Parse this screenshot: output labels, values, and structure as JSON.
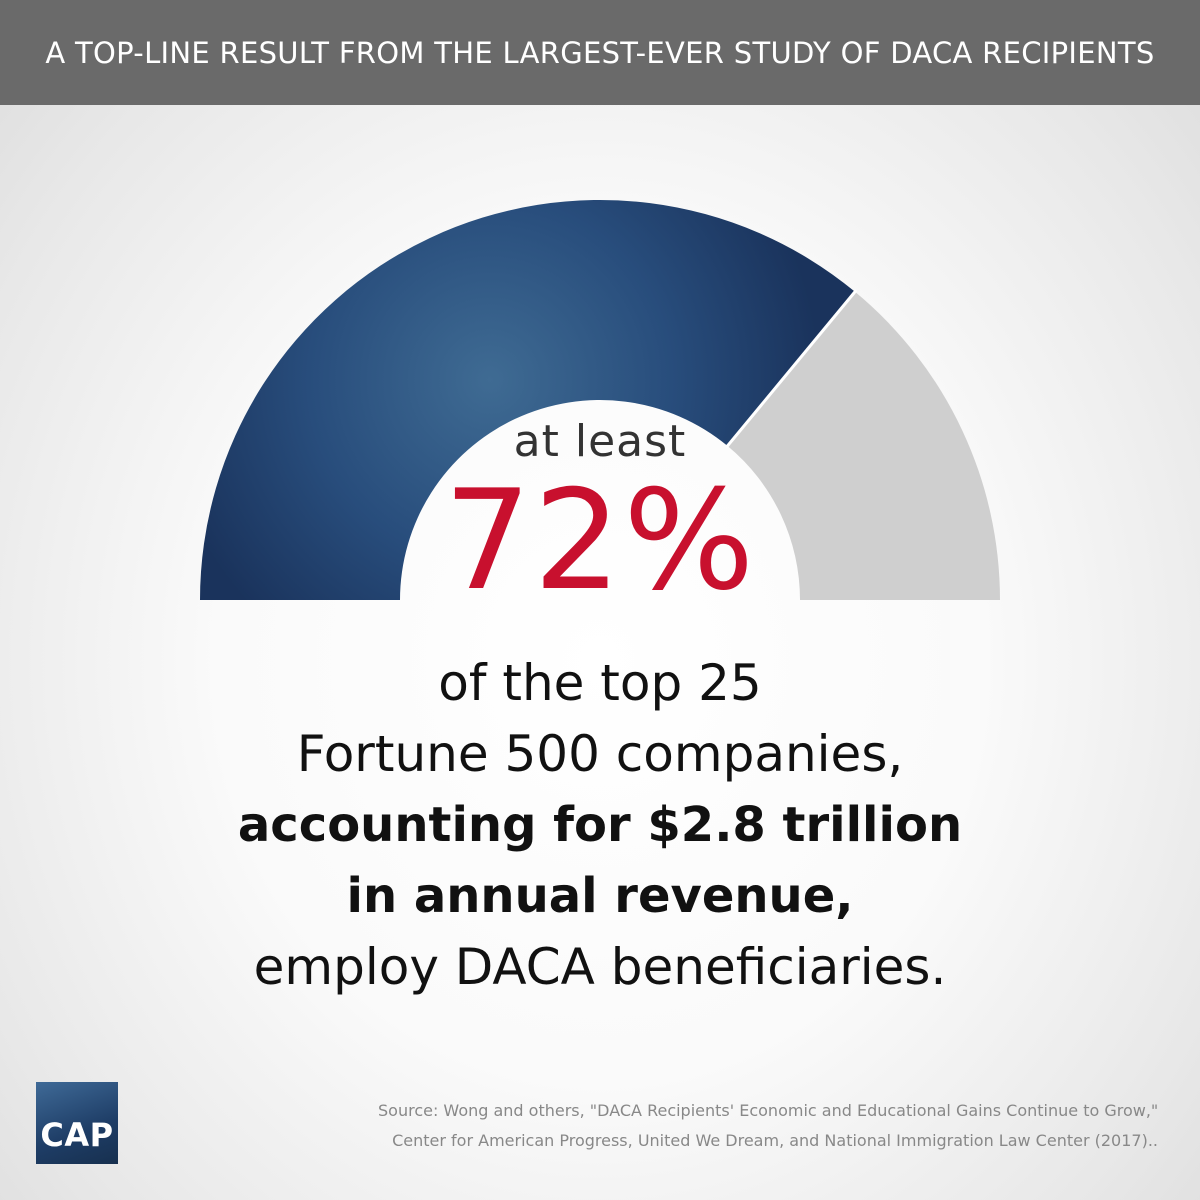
{
  "header": {
    "title": "A TOP-LINE RESULT FROM THE LARGEST-EVER STUDY OF DACA RECIPIENTS"
  },
  "chart_data": {
    "type": "gauge",
    "value": 72,
    "max": 100,
    "prefix": "at least",
    "label": "72%",
    "colors": {
      "filled": "#1f3d6b",
      "remainder": "#cfcfcf",
      "value_text": "#c8102e"
    }
  },
  "body": {
    "line1": "of the top 25",
    "line2": "Fortune 500 companies,",
    "line3": "accounting for $2.8 trillion",
    "line4": "in annual revenue,",
    "line5": "employ DACA beneficiaries."
  },
  "logo": {
    "text": "CAP"
  },
  "source": {
    "line1": "Source: Wong and others, \"DACA Recipients' Economic and Educational Gains Continue to Grow,\"",
    "line2": "Center for American Progress, United We Dream, and National Immigration Law Center (2017).."
  }
}
